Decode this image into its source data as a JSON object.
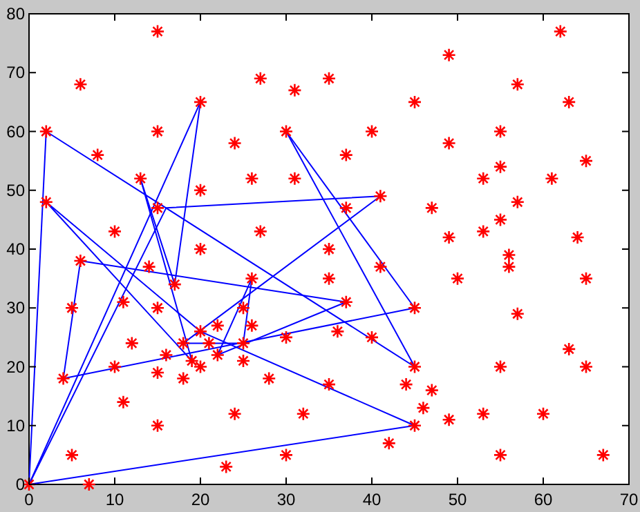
{
  "chart_data": {
    "type": "scatter",
    "xlim": [
      0,
      70
    ],
    "ylim": [
      0,
      80
    ],
    "xticks": [
      0,
      10,
      20,
      30,
      40,
      50,
      60,
      70
    ],
    "yticks": [
      0,
      10,
      20,
      30,
      40,
      50,
      60,
      70,
      80
    ],
    "grid": false,
    "legend": false,
    "series": [
      {
        "color": "#ff0000",
        "marker": "cross",
        "x": [
          15,
          6,
          27,
          31,
          35,
          20,
          2,
          15,
          8,
          24,
          30,
          13,
          26,
          31,
          20,
          2,
          15,
          10,
          27,
          20,
          35,
          49,
          62,
          57,
          45,
          63,
          40,
          55,
          37,
          49,
          65,
          53,
          55,
          61,
          41,
          37,
          47,
          57,
          55,
          49,
          53,
          64,
          56,
          6,
          14,
          17,
          26,
          5,
          11,
          15,
          25,
          26,
          22,
          20,
          30,
          12,
          18,
          21,
          25,
          16,
          22,
          19,
          25,
          4,
          10,
          15,
          20,
          18,
          28,
          35,
          11,
          24,
          32,
          15,
          5,
          30,
          23,
          7,
          0,
          56,
          41,
          35,
          50,
          65,
          45,
          37,
          57,
          36,
          40,
          63,
          45,
          55,
          65,
          44,
          47,
          46,
          49,
          53,
          60,
          45,
          42,
          55,
          67
        ],
        "values": [
          77,
          68,
          69,
          67,
          69,
          65,
          60,
          60,
          56,
          58,
          60,
          52,
          52,
          52,
          50,
          48,
          47,
          43,
          43,
          40,
          40,
          73,
          77,
          68,
          65,
          65,
          60,
          60,
          56,
          58,
          55,
          52,
          54,
          52,
          49,
          47,
          47,
          48,
          45,
          42,
          43,
          42,
          39,
          38,
          37,
          34,
          35,
          30,
          31,
          30,
          30,
          27,
          27,
          26,
          25,
          24,
          24,
          24,
          24,
          22,
          22,
          21,
          21,
          18,
          20,
          19,
          20,
          18,
          18,
          17,
          14,
          12,
          12,
          10,
          5,
          5,
          3,
          0,
          0,
          37,
          37,
          35,
          35,
          35,
          30,
          31,
          29,
          26,
          25,
          23,
          20,
          20,
          20,
          17,
          16,
          13,
          11,
          12,
          12,
          10,
          7,
          5,
          5
        ]
      },
      {
        "type": "line",
        "color": "#0000ff",
        "marker": "none",
        "x": [
          0,
          45
        ],
        "values": [
          0,
          10
        ]
      },
      {
        "type": "line",
        "color": "#0000ff",
        "marker": "none",
        "x": [
          45,
          20,
          2
        ],
        "values": [
          10,
          26,
          48
        ]
      },
      {
        "type": "line",
        "color": "#0000ff",
        "marker": "none",
        "x": [
          2,
          19
        ],
        "values": [
          48,
          21
        ]
      },
      {
        "type": "line",
        "color": "#0000ff",
        "marker": "none",
        "x": [
          19,
          13
        ],
        "values": [
          21,
          52
        ]
      },
      {
        "type": "line",
        "color": "#0000ff",
        "marker": "none",
        "x": [
          13,
          17,
          20
        ],
        "values": [
          52,
          34,
          65
        ]
      },
      {
        "type": "line",
        "color": "#0000ff",
        "marker": "none",
        "x": [
          20,
          0
        ],
        "values": [
          65,
          0
        ]
      },
      {
        "type": "line",
        "color": "#0000ff",
        "marker": "none",
        "x": [
          0,
          2,
          45
        ],
        "values": [
          0,
          60,
          20
        ]
      },
      {
        "type": "line",
        "color": "#0000ff",
        "marker": "none",
        "x": [
          45,
          30
        ],
        "values": [
          20,
          60
        ]
      },
      {
        "type": "line",
        "color": "#0000ff",
        "marker": "none",
        "x": [
          30,
          45
        ],
        "values": [
          60,
          30
        ]
      },
      {
        "type": "line",
        "color": "#0000ff",
        "marker": "none",
        "x": [
          45,
          4
        ],
        "values": [
          30,
          18
        ]
      },
      {
        "type": "line",
        "color": "#0000ff",
        "marker": "none",
        "x": [
          4,
          6,
          37
        ],
        "values": [
          18,
          38,
          31
        ]
      },
      {
        "type": "line",
        "color": "#0000ff",
        "marker": "none",
        "x": [
          37,
          22
        ],
        "values": [
          31,
          22
        ]
      },
      {
        "type": "line",
        "color": "#0000ff",
        "marker": "none",
        "x": [
          22,
          26
        ],
        "values": [
          22,
          35
        ]
      },
      {
        "type": "line",
        "color": "#0000ff",
        "marker": "none",
        "x": [
          26,
          25,
          18
        ],
        "values": [
          35,
          24,
          24
        ]
      },
      {
        "type": "line",
        "color": "#0000ff",
        "marker": "none",
        "x": [
          18,
          41
        ],
        "values": [
          24,
          49
        ]
      },
      {
        "type": "line",
        "color": "#0000ff",
        "marker": "none",
        "x": [
          41,
          16,
          0
        ],
        "values": [
          49,
          47,
          0
        ]
      }
    ]
  }
}
